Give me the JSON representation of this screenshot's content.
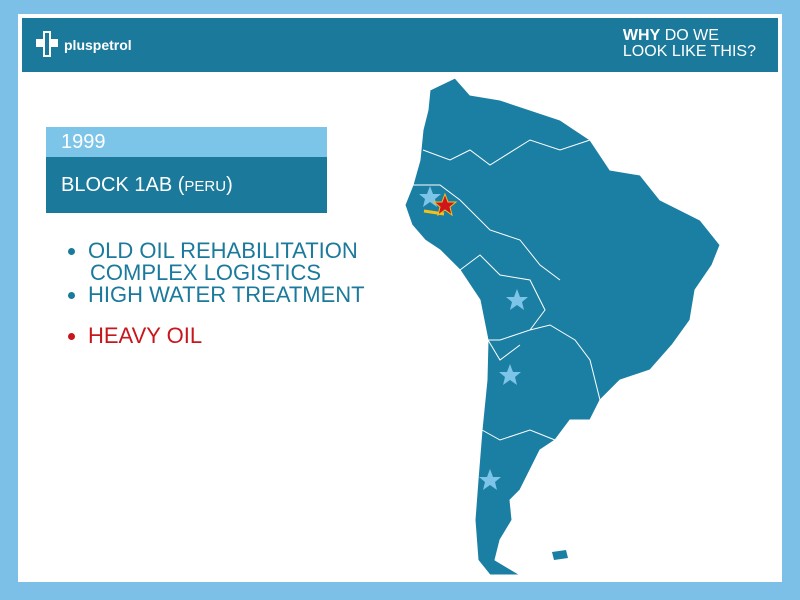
{
  "header": {
    "brand": "pluspetrol",
    "tagline_bold": "WHY",
    "tagline_line1": "DO WE",
    "tagline_line2": "LOOK LIKE THIS?"
  },
  "year": "1999",
  "block": {
    "name": "BLOCK 1AB (",
    "country": "PERU",
    "close": ")"
  },
  "bullets": [
    "OLD OIL REHABILITATION",
    "COMPLEX LOGISTICS",
    "HIGH WATER TREATMENT"
  ],
  "highlight": [
    "HEAVY OIL"
  ]
}
